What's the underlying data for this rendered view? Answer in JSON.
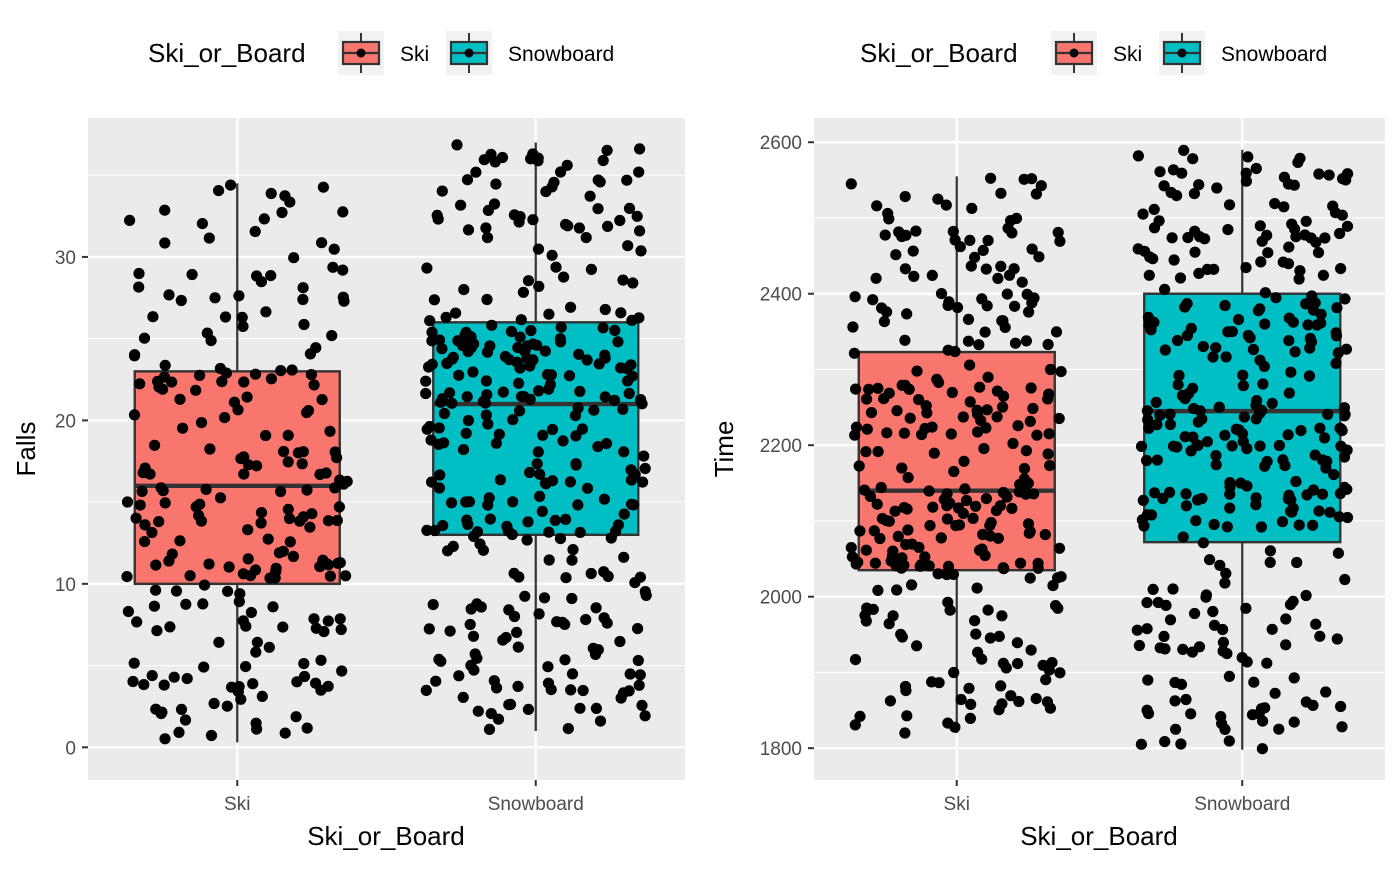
{
  "colors": {
    "panel_bg": "#EBEBEB",
    "grid": "#FFFFFF",
    "ski": "#F8766D",
    "snowboard": "#00BFC4",
    "box_line": "#333333",
    "point": "#000000"
  },
  "chart_data": [
    {
      "type": "boxplot",
      "title": "",
      "xlabel": "Ski_or_Board",
      "ylabel": "Falls",
      "legend": {
        "title": "Ski_or_Board",
        "position": "top",
        "entries": [
          "Ski",
          "Snowboard"
        ]
      },
      "categories": [
        "Ski",
        "Snowboard"
      ],
      "ylim": [
        -2,
        38.5
      ],
      "yticks": [
        0,
        10,
        20,
        30
      ],
      "grid": true,
      "series": [
        {
          "name": "Ski",
          "color": "#F8766D",
          "min": 0.3,
          "q1": 10,
          "median": 16,
          "q3": 23,
          "max": 34.5,
          "n_points": 230,
          "spread": 0.37
        },
        {
          "name": "Snowboard",
          "color": "#00BFC4",
          "min": 1,
          "q1": 13,
          "median": 21,
          "q3": 26,
          "max": 37,
          "n_points": 330,
          "spread": 0.37
        }
      ]
    },
    {
      "type": "boxplot",
      "title": "",
      "xlabel": "Ski_or_Board",
      "ylabel": "Time",
      "legend": {
        "title": "Ski_or_Board",
        "position": "top",
        "entries": [
          "Ski",
          "Snowboard"
        ]
      },
      "categories": [
        "Ski",
        "Snowboard"
      ],
      "ylim": [
        1758,
        2632
      ],
      "yticks": [
        1800,
        2000,
        2200,
        2400,
        2600
      ],
      "grid": true,
      "series": [
        {
          "name": "Ski",
          "color": "#F8766D",
          "min": 1820,
          "q1": 2035,
          "median": 2140,
          "q3": 2323,
          "max": 2555,
          "n_points": 300,
          "spread": 0.37
        },
        {
          "name": "Snowboard",
          "color": "#00BFC4",
          "min": 1798,
          "q1": 2072,
          "median": 2245,
          "q3": 2400,
          "max": 2590,
          "n_points": 330,
          "spread": 0.37
        }
      ]
    }
  ]
}
